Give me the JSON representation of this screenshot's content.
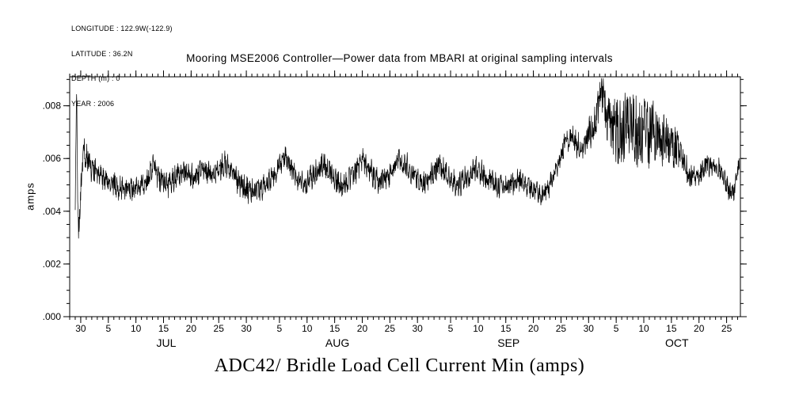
{
  "meta": {
    "lines": [
      "LONGITUDE : 122.9W(-122.9)",
      "LATITUDE : 36.2N",
      "DEPTH (m) : 0",
      "YEAR : 2006"
    ]
  },
  "chart_data": {
    "type": "line",
    "title": "Mooring MSE2006 Controller—Power data from MBARI at original sampling intervals",
    "bottom_title": "ADC42/ Bridle Load Cell Current Min (amps)",
    "ylabel": "amps",
    "ylim": [
      0,
      0.0091
    ],
    "y_minor_step": 0.0005,
    "yticks": [
      {
        "value": 0.0,
        "label": ".000"
      },
      {
        "value": 0.002,
        "label": ".002"
      },
      {
        "value": 0.004,
        "label": ".004"
      },
      {
        "value": 0.006,
        "label": ".006"
      },
      {
        "value": 0.008,
        "label": ".008"
      }
    ],
    "x_range_days": [
      0,
      121.5
    ],
    "x_axis_note": "day index, tick labels are days of month Jun 30 - Oct 25 2006",
    "xticks": [
      {
        "day": 2,
        "label": "30"
      },
      {
        "day": 7,
        "label": "5"
      },
      {
        "day": 12,
        "label": "10"
      },
      {
        "day": 17,
        "label": "15"
      },
      {
        "day": 22,
        "label": "20"
      },
      {
        "day": 27,
        "label": "25"
      },
      {
        "day": 32,
        "label": "30"
      },
      {
        "day": 38,
        "label": "5"
      },
      {
        "day": 43,
        "label": "10"
      },
      {
        "day": 48,
        "label": "15"
      },
      {
        "day": 53,
        "label": "20"
      },
      {
        "day": 58,
        "label": "25"
      },
      {
        "day": 63,
        "label": "30"
      },
      {
        "day": 69,
        "label": "5"
      },
      {
        "day": 74,
        "label": "10"
      },
      {
        "day": 79,
        "label": "15"
      },
      {
        "day": 84,
        "label": "20"
      },
      {
        "day": 89,
        "label": "25"
      },
      {
        "day": 94,
        "label": "30"
      },
      {
        "day": 99,
        "label": "5"
      },
      {
        "day": 104,
        "label": "10"
      },
      {
        "day": 109,
        "label": "15"
      },
      {
        "day": 114,
        "label": "20"
      },
      {
        "day": 119,
        "label": "25"
      }
    ],
    "months": [
      {
        "label": "JUL",
        "day": 17.5
      },
      {
        "label": "AUG",
        "day": 48.5
      },
      {
        "label": "SEP",
        "day": 79.5
      },
      {
        "label": "OCT",
        "day": 110
      }
    ],
    "grid": false,
    "legend": "none",
    "line_color": "#000000",
    "series": [
      {
        "name": "ADC42/ Bridle Load Cell Current Min",
        "units": "amps",
        "data_start_day": 1.0,
        "trend": [
          [
            1.0,
            0.0044
          ],
          [
            1.15,
            0.007
          ],
          [
            1.25,
            0.0086
          ],
          [
            1.45,
            0.0049
          ],
          [
            1.6,
            0.003
          ],
          [
            1.8,
            0.004
          ],
          [
            2.1,
            0.0052
          ],
          [
            2.5,
            0.0064
          ],
          [
            3.0,
            0.0061
          ],
          [
            3.5,
            0.0058
          ],
          [
            4.5,
            0.0055
          ],
          [
            6,
            0.0052
          ],
          [
            8,
            0.005
          ],
          [
            10,
            0.0048
          ],
          [
            12,
            0.0049
          ],
          [
            14,
            0.0051
          ],
          [
            15.3,
            0.0058
          ],
          [
            16,
            0.0053
          ],
          [
            17,
            0.0051
          ],
          [
            18,
            0.005
          ],
          [
            19.5,
            0.0054
          ],
          [
            21,
            0.0055
          ],
          [
            22.5,
            0.0053
          ],
          [
            24,
            0.0056
          ],
          [
            25.5,
            0.0054
          ],
          [
            27,
            0.0056
          ],
          [
            28,
            0.0058
          ],
          [
            29,
            0.0056
          ],
          [
            30.5,
            0.0051
          ],
          [
            32,
            0.0048
          ],
          [
            33.5,
            0.0047
          ],
          [
            35,
            0.0049
          ],
          [
            36.5,
            0.0052
          ],
          [
            38,
            0.0057
          ],
          [
            39,
            0.0061
          ],
          [
            40,
            0.0057
          ],
          [
            41.5,
            0.0052
          ],
          [
            43,
            0.0051
          ],
          [
            44.5,
            0.0054
          ],
          [
            46,
            0.0058
          ],
          [
            47.5,
            0.0054
          ],
          [
            49,
            0.005
          ],
          [
            50.5,
            0.0052
          ],
          [
            52,
            0.0056
          ],
          [
            53,
            0.0059
          ],
          [
            54.5,
            0.0055
          ],
          [
            56,
            0.0051
          ],
          [
            57.5,
            0.0053
          ],
          [
            59,
            0.0057
          ],
          [
            60,
            0.006
          ],
          [
            61.5,
            0.0056
          ],
          [
            63,
            0.0052
          ],
          [
            64.5,
            0.0051
          ],
          [
            66,
            0.0055
          ],
          [
            67,
            0.0058
          ],
          [
            68.5,
            0.0054
          ],
          [
            70,
            0.005
          ],
          [
            71.5,
            0.0052
          ],
          [
            73,
            0.0055
          ],
          [
            74,
            0.0056
          ],
          [
            75.5,
            0.0053
          ],
          [
            77,
            0.005
          ],
          [
            78.5,
            0.0049
          ],
          [
            80,
            0.0051
          ],
          [
            81.5,
            0.0052
          ],
          [
            83,
            0.0049
          ],
          [
            84.5,
            0.0047
          ],
          [
            86,
            0.0046
          ],
          [
            87,
            0.005
          ],
          [
            88,
            0.0056
          ],
          [
            89,
            0.0062
          ],
          [
            90,
            0.0066
          ],
          [
            91,
            0.0068
          ],
          [
            92,
            0.0065
          ],
          [
            93,
            0.0064
          ],
          [
            94,
            0.0069
          ],
          [
            95,
            0.0073
          ],
          [
            95.8,
            0.008
          ],
          [
            96.3,
            0.0086
          ],
          [
            96.8,
            0.008
          ],
          [
            97.5,
            0.0074
          ],
          [
            98.5,
            0.0071
          ],
          [
            99.5,
            0.0069
          ],
          [
            100.5,
            0.0072
          ],
          [
            101.5,
            0.0074
          ],
          [
            102.5,
            0.007
          ],
          [
            103.5,
            0.0068
          ],
          [
            104.5,
            0.0071
          ],
          [
            105.5,
            0.0069
          ],
          [
            106.5,
            0.0068
          ],
          [
            107.5,
            0.0067
          ],
          [
            108.5,
            0.0065
          ],
          [
            109.5,
            0.0064
          ],
          [
            110.5,
            0.0062
          ],
          [
            111.5,
            0.0058
          ],
          [
            112.5,
            0.0053
          ],
          [
            113.5,
            0.0052
          ],
          [
            114.5,
            0.0056
          ],
          [
            115.5,
            0.0058
          ],
          [
            116.5,
            0.0057
          ],
          [
            117.5,
            0.0056
          ],
          [
            118.5,
            0.0053
          ],
          [
            119.5,
            0.0048
          ],
          [
            120.3,
            0.0047
          ],
          [
            120.8,
            0.0053
          ],
          [
            121.3,
            0.0058
          ]
        ],
        "noise_amplitude": [
          [
            1,
            0.0004
          ],
          [
            2,
            0.0005
          ],
          [
            5,
            0.0004
          ],
          [
            80,
            0.0004
          ],
          [
            86,
            0.0003
          ],
          [
            90,
            0.0004
          ],
          [
            93,
            0.0004
          ],
          [
            95,
            0.0006
          ],
          [
            97,
            0.0008
          ],
          [
            99,
            0.0012
          ],
          [
            101,
            0.0014
          ],
          [
            103,
            0.0013
          ],
          [
            105,
            0.0013
          ],
          [
            107,
            0.0011
          ],
          [
            108.5,
            0.0009
          ],
          [
            110,
            0.0007
          ],
          [
            111,
            0.0005
          ],
          [
            113,
            0.0004
          ],
          [
            121.3,
            0.0003
          ]
        ]
      }
    ]
  }
}
